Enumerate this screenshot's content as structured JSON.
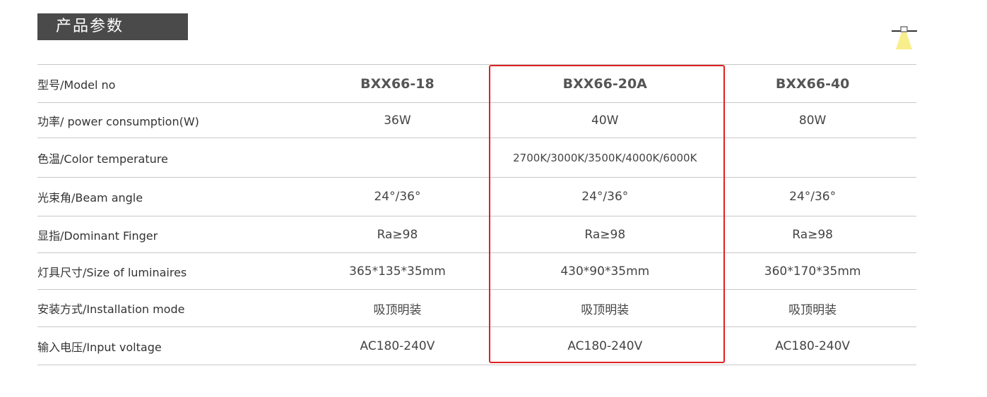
{
  "header": {
    "title": "产品参数",
    "icon": "ceiling-lamp-icon"
  },
  "highlight_color": "#e02020",
  "table": {
    "rows": [
      {
        "label": "型号/Model no",
        "values": [
          "BXX66-18",
          "BXX66-20A",
          "BXX66-40"
        ]
      },
      {
        "label": "功率/ power consumption(W)",
        "values": [
          "36W",
          "40W",
          "80W"
        ]
      },
      {
        "label": "色温/Color temperature",
        "values": [
          "",
          "2700K/3000K/3500K/4000K/6000K",
          ""
        ]
      },
      {
        "label": "光束角/Beam angle",
        "values": [
          "24°/36°",
          "24°/36°",
          "24°/36°"
        ]
      },
      {
        "label": "显指/Dominant Finger",
        "values": [
          "Ra≥98",
          "Ra≥98",
          "Ra≥98"
        ]
      },
      {
        "label": "灯具尺寸/Size of luminaires",
        "values": [
          "365*135*35mm",
          "430*90*35mm",
          "360*170*35mm"
        ]
      },
      {
        "label": "安装方式/Installation mode",
        "values": [
          "吸顶明装",
          "吸顶明装",
          "吸顶明装"
        ]
      },
      {
        "label": "输入电压/Input voltage",
        "values": [
          "AC180-240V",
          "AC180-240V",
          "AC180-240V"
        ]
      }
    ]
  }
}
